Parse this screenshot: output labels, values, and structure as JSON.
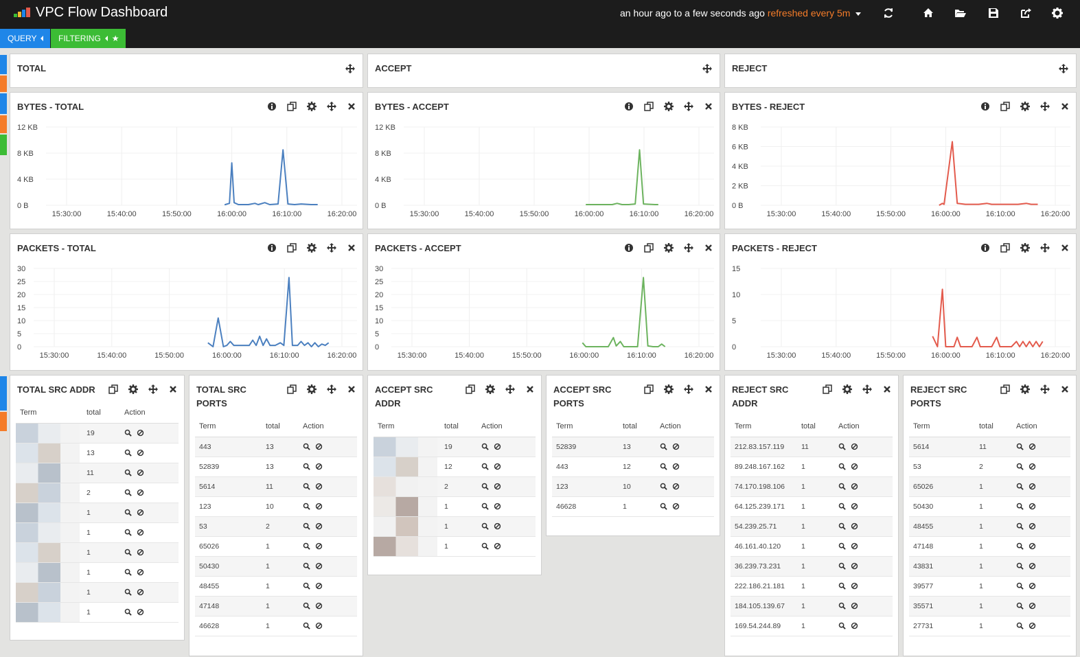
{
  "app": {
    "title": "VPC Flow Dashboard",
    "time_range": "an hour ago to a few seconds ago",
    "refresh": "refreshed every 5m"
  },
  "top_icons": [
    "refresh-icon",
    "home-icon",
    "folder-open-icon",
    "save-icon",
    "share-icon",
    "settings-icon"
  ],
  "pills": {
    "query": "QUERY",
    "filtering": "FILTERING"
  },
  "colors": {
    "blue": "#4a7fbf",
    "green": "#6cb35e",
    "red": "#e35a4c",
    "query_pill": "#1f86e8",
    "filter_pill": "#3cbc35",
    "refresh_text": "#f57c29"
  },
  "row_headers": {
    "total": "TOTAL",
    "accept": "ACCEPT",
    "reject": "REJECT"
  },
  "charts": [
    {
      "title": "BYTES - TOTAL",
      "color": "#4a7fbf",
      "yticks": [
        "12 KB",
        "8 KB",
        "4 KB",
        "0 B"
      ],
      "ymax": 12,
      "xticks": [
        "15:30:00",
        "15:40:00",
        "15:50:00",
        "16:00:00",
        "16:10:00",
        "16:20:00"
      ],
      "series": [
        [
          15.98,
          0
        ],
        [
          15.98,
          0.1
        ],
        [
          15.993,
          0.3
        ],
        [
          16.0,
          6.5
        ],
        [
          16.007,
          0.4
        ],
        [
          16.02,
          0.1
        ],
        [
          16.05,
          0.1
        ],
        [
          16.07,
          0.3
        ],
        [
          16.08,
          0.1
        ],
        [
          16.1,
          0.4
        ],
        [
          16.115,
          0.1
        ],
        [
          16.14,
          0.2
        ],
        [
          16.155,
          8.5
        ],
        [
          16.17,
          0.2
        ],
        [
          16.19,
          0.1
        ],
        [
          16.21,
          0.2
        ],
        [
          16.24,
          0.1
        ],
        [
          16.26,
          0.1
        ]
      ]
    },
    {
      "title": "BYTES - ACCEPT",
      "color": "#6cb35e",
      "yticks": [
        "12 KB",
        "8 KB",
        "4 KB",
        "0 B"
      ],
      "ymax": 12,
      "xticks": [
        "15:30:00",
        "15:40:00",
        "15:50:00",
        "16:00:00",
        "16:10:00",
        "16:20:00"
      ],
      "series": [
        [
          15.99,
          0.1
        ],
        [
          16.04,
          0.1
        ],
        [
          16.07,
          0.1
        ],
        [
          16.085,
          0.3
        ],
        [
          16.1,
          0.1
        ],
        [
          16.12,
          0.1
        ],
        [
          16.14,
          0.2
        ],
        [
          16.153,
          8.5
        ],
        [
          16.165,
          0.2
        ],
        [
          16.2,
          0.1
        ],
        [
          16.21,
          0.1
        ]
      ]
    },
    {
      "title": "BYTES - REJECT",
      "color": "#e35a4c",
      "yticks": [
        "8 KB",
        "6 KB",
        "4 KB",
        "2 KB",
        "0 B"
      ],
      "ymax": 8,
      "xticks": [
        "15:30:00",
        "15:40:00",
        "15:50:00",
        "16:00:00",
        "16:10:00",
        "16:20:00"
      ],
      "series": [
        [
          15.98,
          0
        ],
        [
          15.99,
          0.2
        ],
        [
          15.995,
          0.1
        ],
        [
          16.02,
          6.5
        ],
        [
          16.035,
          0.2
        ],
        [
          16.06,
          0.1
        ],
        [
          16.1,
          0.1
        ],
        [
          16.125,
          0.2
        ],
        [
          16.14,
          0.1
        ],
        [
          16.18,
          0.1
        ],
        [
          16.22,
          0.1
        ],
        [
          16.245,
          0.2
        ],
        [
          16.26,
          0.1
        ],
        [
          16.28,
          0.1
        ]
      ]
    },
    {
      "title": "PACKETS - TOTAL",
      "color": "#4a7fbf",
      "yticks": [
        "30",
        "25",
        "20",
        "15",
        "10",
        "5",
        "0"
      ],
      "ymax": 30,
      "xticks": [
        "15:30:00",
        "15:40:00",
        "15:50:00",
        "16:00:00",
        "16:10:00",
        "16:20:00"
      ],
      "series": [
        [
          15.945,
          1.5
        ],
        [
          15.96,
          0
        ],
        [
          15.975,
          11
        ],
        [
          15.99,
          0
        ],
        [
          16.0,
          0.5
        ],
        [
          16.01,
          2
        ],
        [
          16.02,
          0.5
        ],
        [
          16.05,
          0.5
        ],
        [
          16.065,
          0.5
        ],
        [
          16.075,
          2.5
        ],
        [
          16.085,
          0.5
        ],
        [
          16.095,
          4
        ],
        [
          16.105,
          0.5
        ],
        [
          16.115,
          3
        ],
        [
          16.125,
          0.5
        ],
        [
          16.14,
          0.5
        ],
        [
          16.155,
          1.5
        ],
        [
          16.165,
          0.5
        ],
        [
          16.18,
          26.5
        ],
        [
          16.19,
          0.5
        ],
        [
          16.205,
          0.5
        ],
        [
          16.215,
          2
        ],
        [
          16.225,
          0.5
        ],
        [
          16.235,
          1.5
        ],
        [
          16.245,
          0
        ],
        [
          16.255,
          1.5
        ],
        [
          16.265,
          0
        ],
        [
          16.275,
          1
        ],
        [
          16.285,
          0.5
        ],
        [
          16.295,
          1.5
        ]
      ]
    },
    {
      "title": "PACKETS - ACCEPT",
      "color": "#6cb35e",
      "yticks": [
        "30",
        "25",
        "20",
        "15",
        "10",
        "5",
        "0"
      ],
      "ymax": 30,
      "xticks": [
        "15:30:00",
        "15:40:00",
        "15:50:00",
        "16:00:00",
        "16:10:00",
        "16:20:00"
      ],
      "series": [
        [
          15.995,
          1.5
        ],
        [
          16.005,
          0
        ],
        [
          16.02,
          0
        ],
        [
          16.04,
          0
        ],
        [
          16.06,
          0
        ],
        [
          16.07,
          0
        ],
        [
          16.085,
          3.5
        ],
        [
          16.093,
          0.3
        ],
        [
          16.105,
          2
        ],
        [
          16.115,
          0
        ],
        [
          16.14,
          0
        ],
        [
          16.155,
          0
        ],
        [
          16.172,
          26.5
        ],
        [
          16.185,
          0.3
        ],
        [
          16.2,
          0
        ],
        [
          16.215,
          0
        ],
        [
          16.225,
          1
        ],
        [
          16.235,
          0
        ]
      ]
    },
    {
      "title": "PACKETS - REJECT",
      "color": "#e35a4c",
      "yticks": [
        "15",
        "10",
        "5",
        "0"
      ],
      "ymax": 15,
      "xticks": [
        "15:30:00",
        "15:40:00",
        "15:50:00",
        "16:00:00",
        "16:10:00",
        "16:20:00"
      ],
      "series": [
        [
          15.96,
          2
        ],
        [
          15.975,
          0
        ],
        [
          15.99,
          11
        ],
        [
          16.0,
          0
        ],
        [
          16.025,
          0
        ],
        [
          16.035,
          1.8
        ],
        [
          16.045,
          0
        ],
        [
          16.08,
          0
        ],
        [
          16.095,
          1.8
        ],
        [
          16.105,
          0
        ],
        [
          16.14,
          0
        ],
        [
          16.155,
          1.8
        ],
        [
          16.165,
          0
        ],
        [
          16.2,
          0
        ],
        [
          16.215,
          1
        ],
        [
          16.225,
          0
        ],
        [
          16.235,
          1
        ],
        [
          16.245,
          0
        ],
        [
          16.255,
          1
        ],
        [
          16.265,
          0
        ],
        [
          16.275,
          1
        ],
        [
          16.285,
          0
        ],
        [
          16.295,
          1
        ]
      ]
    }
  ],
  "tables": [
    {
      "title": "TOTAL SRC ADDR",
      "headers": [
        "Term",
        "total",
        "Action"
      ],
      "rows": [
        {
          "term": "",
          "total": "19"
        },
        {
          "term": "",
          "total": "13"
        },
        {
          "term": "",
          "total": "11"
        },
        {
          "term": "",
          "total": "2"
        },
        {
          "term": "",
          "total": "1"
        },
        {
          "term": "",
          "total": "1"
        },
        {
          "term": "",
          "total": "1"
        },
        {
          "term": "",
          "total": "1"
        },
        {
          "term": "",
          "total": "1"
        },
        {
          "term": "",
          "total": "1"
        }
      ]
    },
    {
      "title": "TOTAL SRC PORTS",
      "headers": [
        "Term",
        "total",
        "Action"
      ],
      "rows": [
        {
          "term": "443",
          "total": "13"
        },
        {
          "term": "52839",
          "total": "13"
        },
        {
          "term": "5614",
          "total": "11"
        },
        {
          "term": "123",
          "total": "10"
        },
        {
          "term": "53",
          "total": "2"
        },
        {
          "term": "65026",
          "total": "1"
        },
        {
          "term": "50430",
          "total": "1"
        },
        {
          "term": "48455",
          "total": "1"
        },
        {
          "term": "47148",
          "total": "1"
        },
        {
          "term": "46628",
          "total": "1"
        }
      ]
    },
    {
      "title": "ACCEPT SRC ADDR",
      "headers": [
        "Term",
        "total",
        "Action"
      ],
      "rows": [
        {
          "term": "",
          "total": "19"
        },
        {
          "term": "",
          "total": "12"
        },
        {
          "term": "",
          "total": "2"
        },
        {
          "term": "",
          "total": "1"
        },
        {
          "term": "",
          "total": "1"
        },
        {
          "term": "",
          "total": "1"
        }
      ]
    },
    {
      "title": "ACCEPT SRC PORTS",
      "headers": [
        "Term",
        "total",
        "Action"
      ],
      "rows": [
        {
          "term": "52839",
          "total": "13"
        },
        {
          "term": "443",
          "total": "12"
        },
        {
          "term": "123",
          "total": "10"
        },
        {
          "term": "46628",
          "total": "1"
        }
      ]
    },
    {
      "title": "REJECT SRC ADDR",
      "headers": [
        "Term",
        "total",
        "Action"
      ],
      "rows": [
        {
          "term": "212.83.157.119",
          "total": "11"
        },
        {
          "term": "89.248.167.162",
          "total": "1"
        },
        {
          "term": "74.170.198.106",
          "total": "1"
        },
        {
          "term": "64.125.239.171",
          "total": "1"
        },
        {
          "term": "54.239.25.71",
          "total": "1"
        },
        {
          "term": "46.161.40.120",
          "total": "1"
        },
        {
          "term": "36.239.73.231",
          "total": "1"
        },
        {
          "term": "222.186.21.181",
          "total": "1"
        },
        {
          "term": "184.105.139.67",
          "total": "1"
        },
        {
          "term": "169.54.244.89",
          "total": "1"
        }
      ]
    },
    {
      "title": "REJECT SRC PORTS",
      "headers": [
        "Term",
        "total",
        "Action"
      ],
      "rows": [
        {
          "term": "5614",
          "total": "11"
        },
        {
          "term": "53",
          "total": "2"
        },
        {
          "term": "65026",
          "total": "1"
        },
        {
          "term": "50430",
          "total": "1"
        },
        {
          "term": "48455",
          "total": "1"
        },
        {
          "term": "47148",
          "total": "1"
        },
        {
          "term": "43831",
          "total": "1"
        },
        {
          "term": "39577",
          "total": "1"
        },
        {
          "term": "35571",
          "total": "1"
        },
        {
          "term": "27731",
          "total": "1"
        }
      ]
    }
  ]
}
